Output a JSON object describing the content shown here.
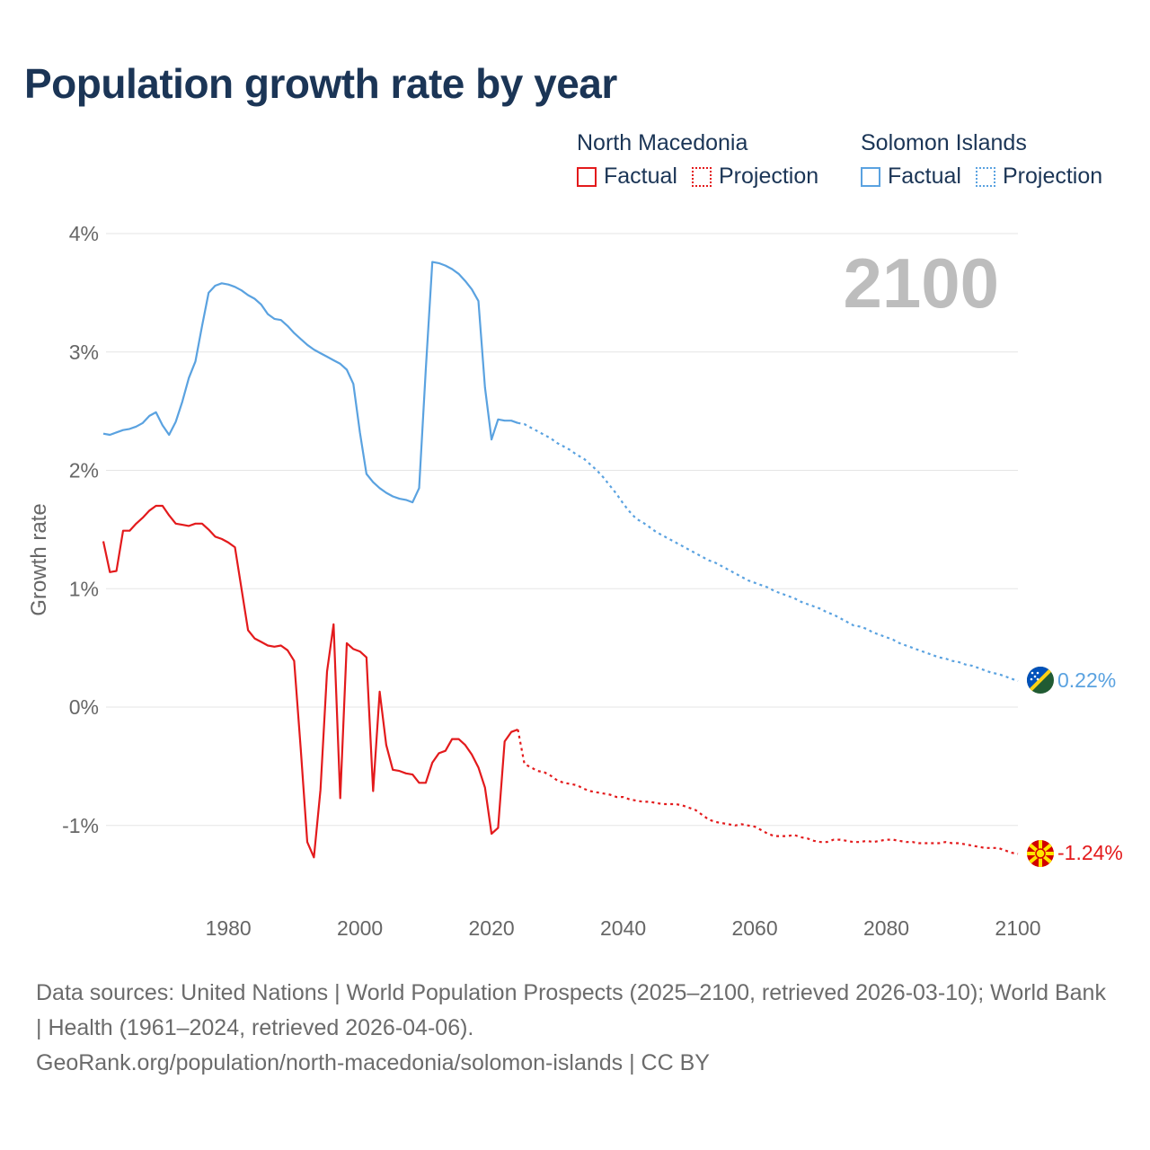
{
  "title": "Population growth rate by year",
  "legend": {
    "groups": [
      {
        "country": "North Macedonia",
        "factual_label": "Factual",
        "projection_label": "Projection",
        "color": "#e31a1c"
      },
      {
        "country": "Solomon Islands",
        "factual_label": "Factual",
        "projection_label": "Projection",
        "color": "#5aa2e0"
      }
    ]
  },
  "year_watermark": "2100",
  "footer": {
    "sources": "Data sources: United Nations | World Population Prospects (2025–2100, retrieved 2026-03-10); World Bank | Health (1961–2024, retrieved 2026-04-06).",
    "credit": "GeoRank.org/population/north-macedonia/solomon-islands | CC BY"
  },
  "chart_data": {
    "type": "line",
    "title": "Population growth rate by year",
    "xlabel": "",
    "ylabel": "Growth rate",
    "xlim": [
      1961,
      2100
    ],
    "ylim": [
      -1.6,
      4
    ],
    "y_ticks": [
      4,
      3,
      2,
      1,
      0,
      -1
    ],
    "y_tick_labels": [
      "4%",
      "3%",
      "2%",
      "1%",
      "0%",
      "-1%"
    ],
    "x_ticks": [
      1980,
      2000,
      2020,
      2040,
      2060,
      2080,
      2100
    ],
    "x_tick_labels": [
      "1980",
      "2000",
      "2020",
      "2040",
      "2060",
      "2080",
      "2100"
    ],
    "grid": true,
    "series": [
      {
        "name": "Solomon Islands",
        "color": "#5aa2e0",
        "end_label": "0.22%",
        "factual": [
          [
            1961,
            2.31
          ],
          [
            1962,
            2.3
          ],
          [
            1963,
            2.32
          ],
          [
            1964,
            2.34
          ],
          [
            1965,
            2.35
          ],
          [
            1966,
            2.37
          ],
          [
            1967,
            2.4
          ],
          [
            1968,
            2.46
          ],
          [
            1969,
            2.49
          ],
          [
            1970,
            2.38
          ],
          [
            1971,
            2.3
          ],
          [
            1972,
            2.41
          ],
          [
            1973,
            2.58
          ],
          [
            1974,
            2.78
          ],
          [
            1975,
            2.92
          ],
          [
            1976,
            3.22
          ],
          [
            1977,
            3.5
          ],
          [
            1978,
            3.56
          ],
          [
            1979,
            3.58
          ],
          [
            1980,
            3.57
          ],
          [
            1981,
            3.55
          ],
          [
            1982,
            3.52
          ],
          [
            1983,
            3.48
          ],
          [
            1984,
            3.45
          ],
          [
            1985,
            3.4
          ],
          [
            1986,
            3.32
          ],
          [
            1987,
            3.28
          ],
          [
            1988,
            3.27
          ],
          [
            1989,
            3.22
          ],
          [
            1990,
            3.16
          ],
          [
            1991,
            3.11
          ],
          [
            1992,
            3.06
          ],
          [
            1993,
            3.02
          ],
          [
            1994,
            2.99
          ],
          [
            1995,
            2.96
          ],
          [
            1996,
            2.93
          ],
          [
            1997,
            2.9
          ],
          [
            1998,
            2.85
          ],
          [
            1999,
            2.73
          ],
          [
            2000,
            2.32
          ],
          [
            2001,
            1.97
          ],
          [
            2002,
            1.9
          ],
          [
            2003,
            1.85
          ],
          [
            2004,
            1.81
          ],
          [
            2005,
            1.78
          ],
          [
            2006,
            1.76
          ],
          [
            2007,
            1.75
          ],
          [
            2008,
            1.73
          ],
          [
            2009,
            1.85
          ],
          [
            2010,
            2.85
          ],
          [
            2011,
            3.76
          ],
          [
            2012,
            3.75
          ],
          [
            2013,
            3.73
          ],
          [
            2014,
            3.7
          ],
          [
            2015,
            3.66
          ],
          [
            2016,
            3.6
          ],
          [
            2017,
            3.53
          ],
          [
            2018,
            3.43
          ],
          [
            2019,
            2.7
          ],
          [
            2020,
            2.26
          ],
          [
            2021,
            2.43
          ],
          [
            2022,
            2.42
          ],
          [
            2023,
            2.42
          ],
          [
            2024,
            2.4
          ]
        ],
        "projection": [
          [
            2024,
            2.4
          ],
          [
            2025,
            2.39
          ],
          [
            2026,
            2.36
          ],
          [
            2027,
            2.33
          ],
          [
            2028,
            2.3
          ],
          [
            2029,
            2.27
          ],
          [
            2030,
            2.23
          ],
          [
            2031,
            2.2
          ],
          [
            2032,
            2.17
          ],
          [
            2033,
            2.13
          ],
          [
            2034,
            2.1
          ],
          [
            2035,
            2.05
          ],
          [
            2036,
            2.0
          ],
          [
            2037,
            1.94
          ],
          [
            2038,
            1.87
          ],
          [
            2039,
            1.8
          ],
          [
            2040,
            1.72
          ],
          [
            2041,
            1.65
          ],
          [
            2042,
            1.59
          ],
          [
            2043,
            1.56
          ],
          [
            2044,
            1.52
          ],
          [
            2045,
            1.48
          ],
          [
            2046,
            1.45
          ],
          [
            2047,
            1.42
          ],
          [
            2048,
            1.39
          ],
          [
            2049,
            1.36
          ],
          [
            2050,
            1.33
          ],
          [
            2051,
            1.3
          ],
          [
            2052,
            1.27
          ],
          [
            2053,
            1.24
          ],
          [
            2054,
            1.22
          ],
          [
            2055,
            1.19
          ],
          [
            2056,
            1.16
          ],
          [
            2057,
            1.13
          ],
          [
            2058,
            1.1
          ],
          [
            2059,
            1.07
          ],
          [
            2060,
            1.05
          ],
          [
            2061,
            1.03
          ],
          [
            2062,
            1.01
          ],
          [
            2063,
            0.98
          ],
          [
            2064,
            0.96
          ],
          [
            2065,
            0.94
          ],
          [
            2066,
            0.92
          ],
          [
            2067,
            0.89
          ],
          [
            2068,
            0.87
          ],
          [
            2069,
            0.85
          ],
          [
            2070,
            0.83
          ],
          [
            2071,
            0.8
          ],
          [
            2072,
            0.78
          ],
          [
            2073,
            0.75
          ],
          [
            2074,
            0.72
          ],
          [
            2075,
            0.69
          ],
          [
            2076,
            0.68
          ],
          [
            2077,
            0.66
          ],
          [
            2078,
            0.63
          ],
          [
            2079,
            0.61
          ],
          [
            2080,
            0.59
          ],
          [
            2081,
            0.57
          ],
          [
            2082,
            0.54
          ],
          [
            2083,
            0.52
          ],
          [
            2084,
            0.5
          ],
          [
            2085,
            0.48
          ],
          [
            2086,
            0.46
          ],
          [
            2087,
            0.44
          ],
          [
            2088,
            0.42
          ],
          [
            2089,
            0.41
          ],
          [
            2090,
            0.39
          ],
          [
            2091,
            0.38
          ],
          [
            2092,
            0.36
          ],
          [
            2093,
            0.35
          ],
          [
            2094,
            0.33
          ],
          [
            2095,
            0.31
          ],
          [
            2096,
            0.29
          ],
          [
            2097,
            0.28
          ],
          [
            2098,
            0.26
          ],
          [
            2099,
            0.24
          ],
          [
            2100,
            0.22
          ]
        ]
      },
      {
        "name": "North Macedonia",
        "color": "#e31a1c",
        "end_label": "-1.24%",
        "factual": [
          [
            1961,
            1.4
          ],
          [
            1962,
            1.14
          ],
          [
            1963,
            1.15
          ],
          [
            1964,
            1.49
          ],
          [
            1965,
            1.49
          ],
          [
            1966,
            1.55
          ],
          [
            1967,
            1.6
          ],
          [
            1968,
            1.66
          ],
          [
            1969,
            1.7
          ],
          [
            1970,
            1.7
          ],
          [
            1971,
            1.62
          ],
          [
            1972,
            1.55
          ],
          [
            1973,
            1.54
          ],
          [
            1974,
            1.53
          ],
          [
            1975,
            1.55
          ],
          [
            1976,
            1.55
          ],
          [
            1977,
            1.5
          ],
          [
            1978,
            1.44
          ],
          [
            1979,
            1.42
          ],
          [
            1980,
            1.39
          ],
          [
            1981,
            1.35
          ],
          [
            1982,
            1.0
          ],
          [
            1983,
            0.65
          ],
          [
            1984,
            0.58
          ],
          [
            1985,
            0.55
          ],
          [
            1986,
            0.52
          ],
          [
            1987,
            0.51
          ],
          [
            1988,
            0.52
          ],
          [
            1989,
            0.48
          ],
          [
            1990,
            0.39
          ],
          [
            1991,
            -0.35
          ],
          [
            1992,
            -1.14
          ],
          [
            1993,
            -1.27
          ],
          [
            1994,
            -0.7
          ],
          [
            1995,
            0.3
          ],
          [
            1996,
            0.7
          ],
          [
            1997,
            -0.77
          ],
          [
            1998,
            0.54
          ],
          [
            1999,
            0.49
          ],
          [
            2000,
            0.47
          ],
          [
            2001,
            0.42
          ],
          [
            2002,
            -0.71
          ],
          [
            2003,
            0.13
          ],
          [
            2004,
            -0.32
          ],
          [
            2005,
            -0.53
          ],
          [
            2006,
            -0.54
          ],
          [
            2007,
            -0.56
          ],
          [
            2008,
            -0.57
          ],
          [
            2009,
            -0.64
          ],
          [
            2010,
            -0.64
          ],
          [
            2011,
            -0.47
          ],
          [
            2012,
            -0.39
          ],
          [
            2013,
            -0.37
          ],
          [
            2014,
            -0.27
          ],
          [
            2015,
            -0.27
          ],
          [
            2016,
            -0.32
          ],
          [
            2017,
            -0.4
          ],
          [
            2018,
            -0.51
          ],
          [
            2019,
            -0.68
          ],
          [
            2020,
            -1.07
          ],
          [
            2021,
            -1.02
          ],
          [
            2022,
            -0.29
          ],
          [
            2023,
            -0.21
          ],
          [
            2024,
            -0.19
          ]
        ],
        "projection": [
          [
            2024,
            -0.19
          ],
          [
            2025,
            -0.48
          ],
          [
            2026,
            -0.51
          ],
          [
            2027,
            -0.54
          ],
          [
            2028,
            -0.55
          ],
          [
            2029,
            -0.58
          ],
          [
            2030,
            -0.62
          ],
          [
            2031,
            -0.64
          ],
          [
            2032,
            -0.65
          ],
          [
            2033,
            -0.66
          ],
          [
            2034,
            -0.69
          ],
          [
            2035,
            -0.71
          ],
          [
            2036,
            -0.72
          ],
          [
            2037,
            -0.73
          ],
          [
            2038,
            -0.74
          ],
          [
            2039,
            -0.76
          ],
          [
            2040,
            -0.76
          ],
          [
            2041,
            -0.78
          ],
          [
            2042,
            -0.79
          ],
          [
            2043,
            -0.8
          ],
          [
            2044,
            -0.8
          ],
          [
            2045,
            -0.81
          ],
          [
            2046,
            -0.82
          ],
          [
            2047,
            -0.82
          ],
          [
            2048,
            -0.82
          ],
          [
            2049,
            -0.83
          ],
          [
            2050,
            -0.85
          ],
          [
            2051,
            -0.87
          ],
          [
            2052,
            -0.91
          ],
          [
            2053,
            -0.95
          ],
          [
            2054,
            -0.97
          ],
          [
            2055,
            -0.98
          ],
          [
            2056,
            -0.99
          ],
          [
            2057,
            -1.0
          ],
          [
            2058,
            -0.99
          ],
          [
            2059,
            -1.0
          ],
          [
            2060,
            -1.01
          ],
          [
            2061,
            -1.04
          ],
          [
            2062,
            -1.07
          ],
          [
            2063,
            -1.09
          ],
          [
            2064,
            -1.09
          ],
          [
            2065,
            -1.09
          ],
          [
            2066,
            -1.08
          ],
          [
            2067,
            -1.1
          ],
          [
            2068,
            -1.11
          ],
          [
            2069,
            -1.13
          ],
          [
            2070,
            -1.14
          ],
          [
            2071,
            -1.14
          ],
          [
            2072,
            -1.12
          ],
          [
            2073,
            -1.12
          ],
          [
            2074,
            -1.13
          ],
          [
            2075,
            -1.14
          ],
          [
            2076,
            -1.14
          ],
          [
            2077,
            -1.13
          ],
          [
            2078,
            -1.14
          ],
          [
            2079,
            -1.13
          ],
          [
            2080,
            -1.12
          ],
          [
            2081,
            -1.12
          ],
          [
            2082,
            -1.13
          ],
          [
            2083,
            -1.14
          ],
          [
            2084,
            -1.14
          ],
          [
            2085,
            -1.15
          ],
          [
            2086,
            -1.15
          ],
          [
            2087,
            -1.15
          ],
          [
            2088,
            -1.15
          ],
          [
            2089,
            -1.14
          ],
          [
            2090,
            -1.15
          ],
          [
            2091,
            -1.15
          ],
          [
            2092,
            -1.16
          ],
          [
            2093,
            -1.17
          ],
          [
            2094,
            -1.18
          ],
          [
            2095,
            -1.19
          ],
          [
            2096,
            -1.19
          ],
          [
            2097,
            -1.19
          ],
          [
            2098,
            -1.21
          ],
          [
            2099,
            -1.23
          ],
          [
            2100,
            -1.24
          ]
        ]
      }
    ]
  }
}
